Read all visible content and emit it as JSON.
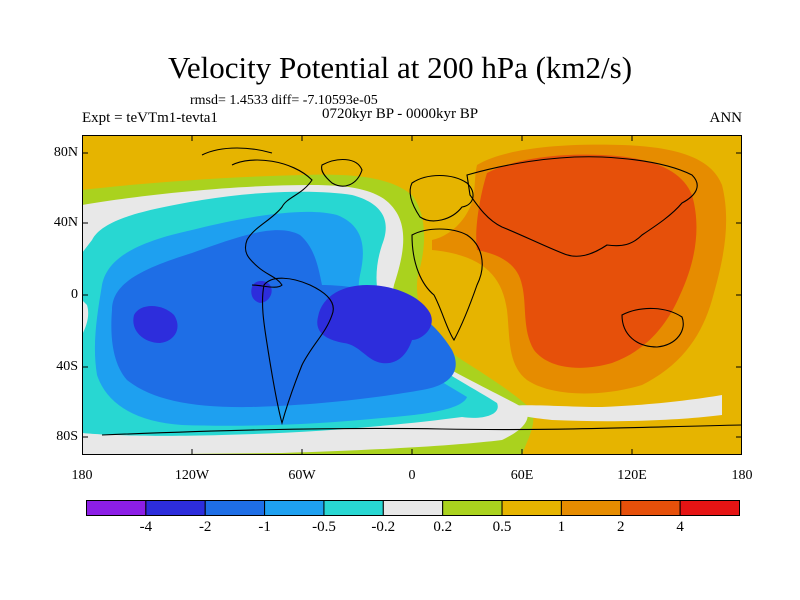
{
  "title": "Velocity Potential at 200 hPa (km2/s)",
  "subtitle_stats": "rmsd= 1.4533 diff= -7.10593e-05",
  "left_label": "Expt = teVTm1-tevta1",
  "center_label": "0720kyr BP - 0000kyr BP",
  "right_label": "ANN",
  "lat_ticks": [
    "80N",
    "40N",
    "0",
    "40S",
    "80S"
  ],
  "lon_ticks": [
    "180",
    "120W",
    "60W",
    "0",
    "60E",
    "120E",
    "180"
  ],
  "colorbar": {
    "labels": [
      "-4",
      "-2",
      "-1",
      "-0.5",
      "-0.2",
      "0.2",
      "0.5",
      "1",
      "2",
      "4"
    ],
    "colors": [
      "#8c1ee6",
      "#2d2ddc",
      "#1e6ee6",
      "#1ea0f0",
      "#28d7d2",
      "#e8e8e8",
      "#aad21e",
      "#e6b400",
      "#e68c00",
      "#e6500a",
      "#e61414"
    ]
  }
}
